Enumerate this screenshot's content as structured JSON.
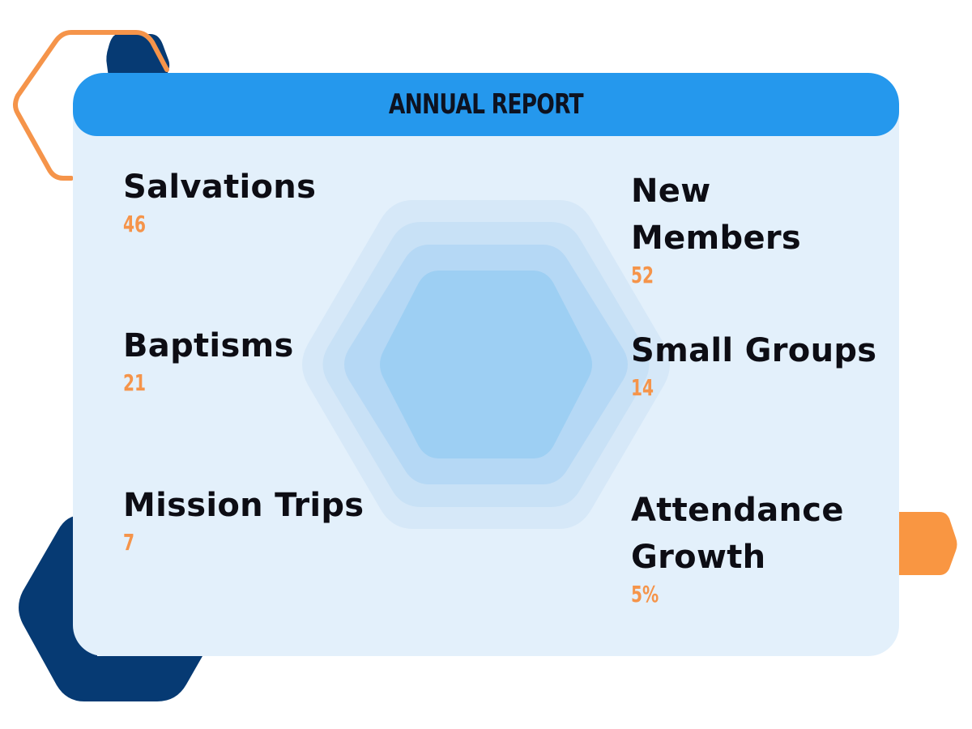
{
  "report": {
    "title": "Annual Report"
  },
  "stats": {
    "salvations": {
      "label": "Salvations",
      "value": "46"
    },
    "baptisms": {
      "label": "Baptisms",
      "value": "21"
    },
    "mission_trips": {
      "label": "Mission Trips",
      "value": "7"
    },
    "new_members": {
      "label": "New Members",
      "value": "52"
    },
    "small_groups": {
      "label": "Small Groups",
      "value": "14"
    },
    "attendance_growth": {
      "label": "Attendance Growth",
      "value": "5%"
    }
  },
  "colors": {
    "header_blue": "#2598ed",
    "card_background": "#e3f0fb",
    "navy": "#063a73",
    "orange": "#f5944a",
    "text_dark": "#0d0d14"
  }
}
